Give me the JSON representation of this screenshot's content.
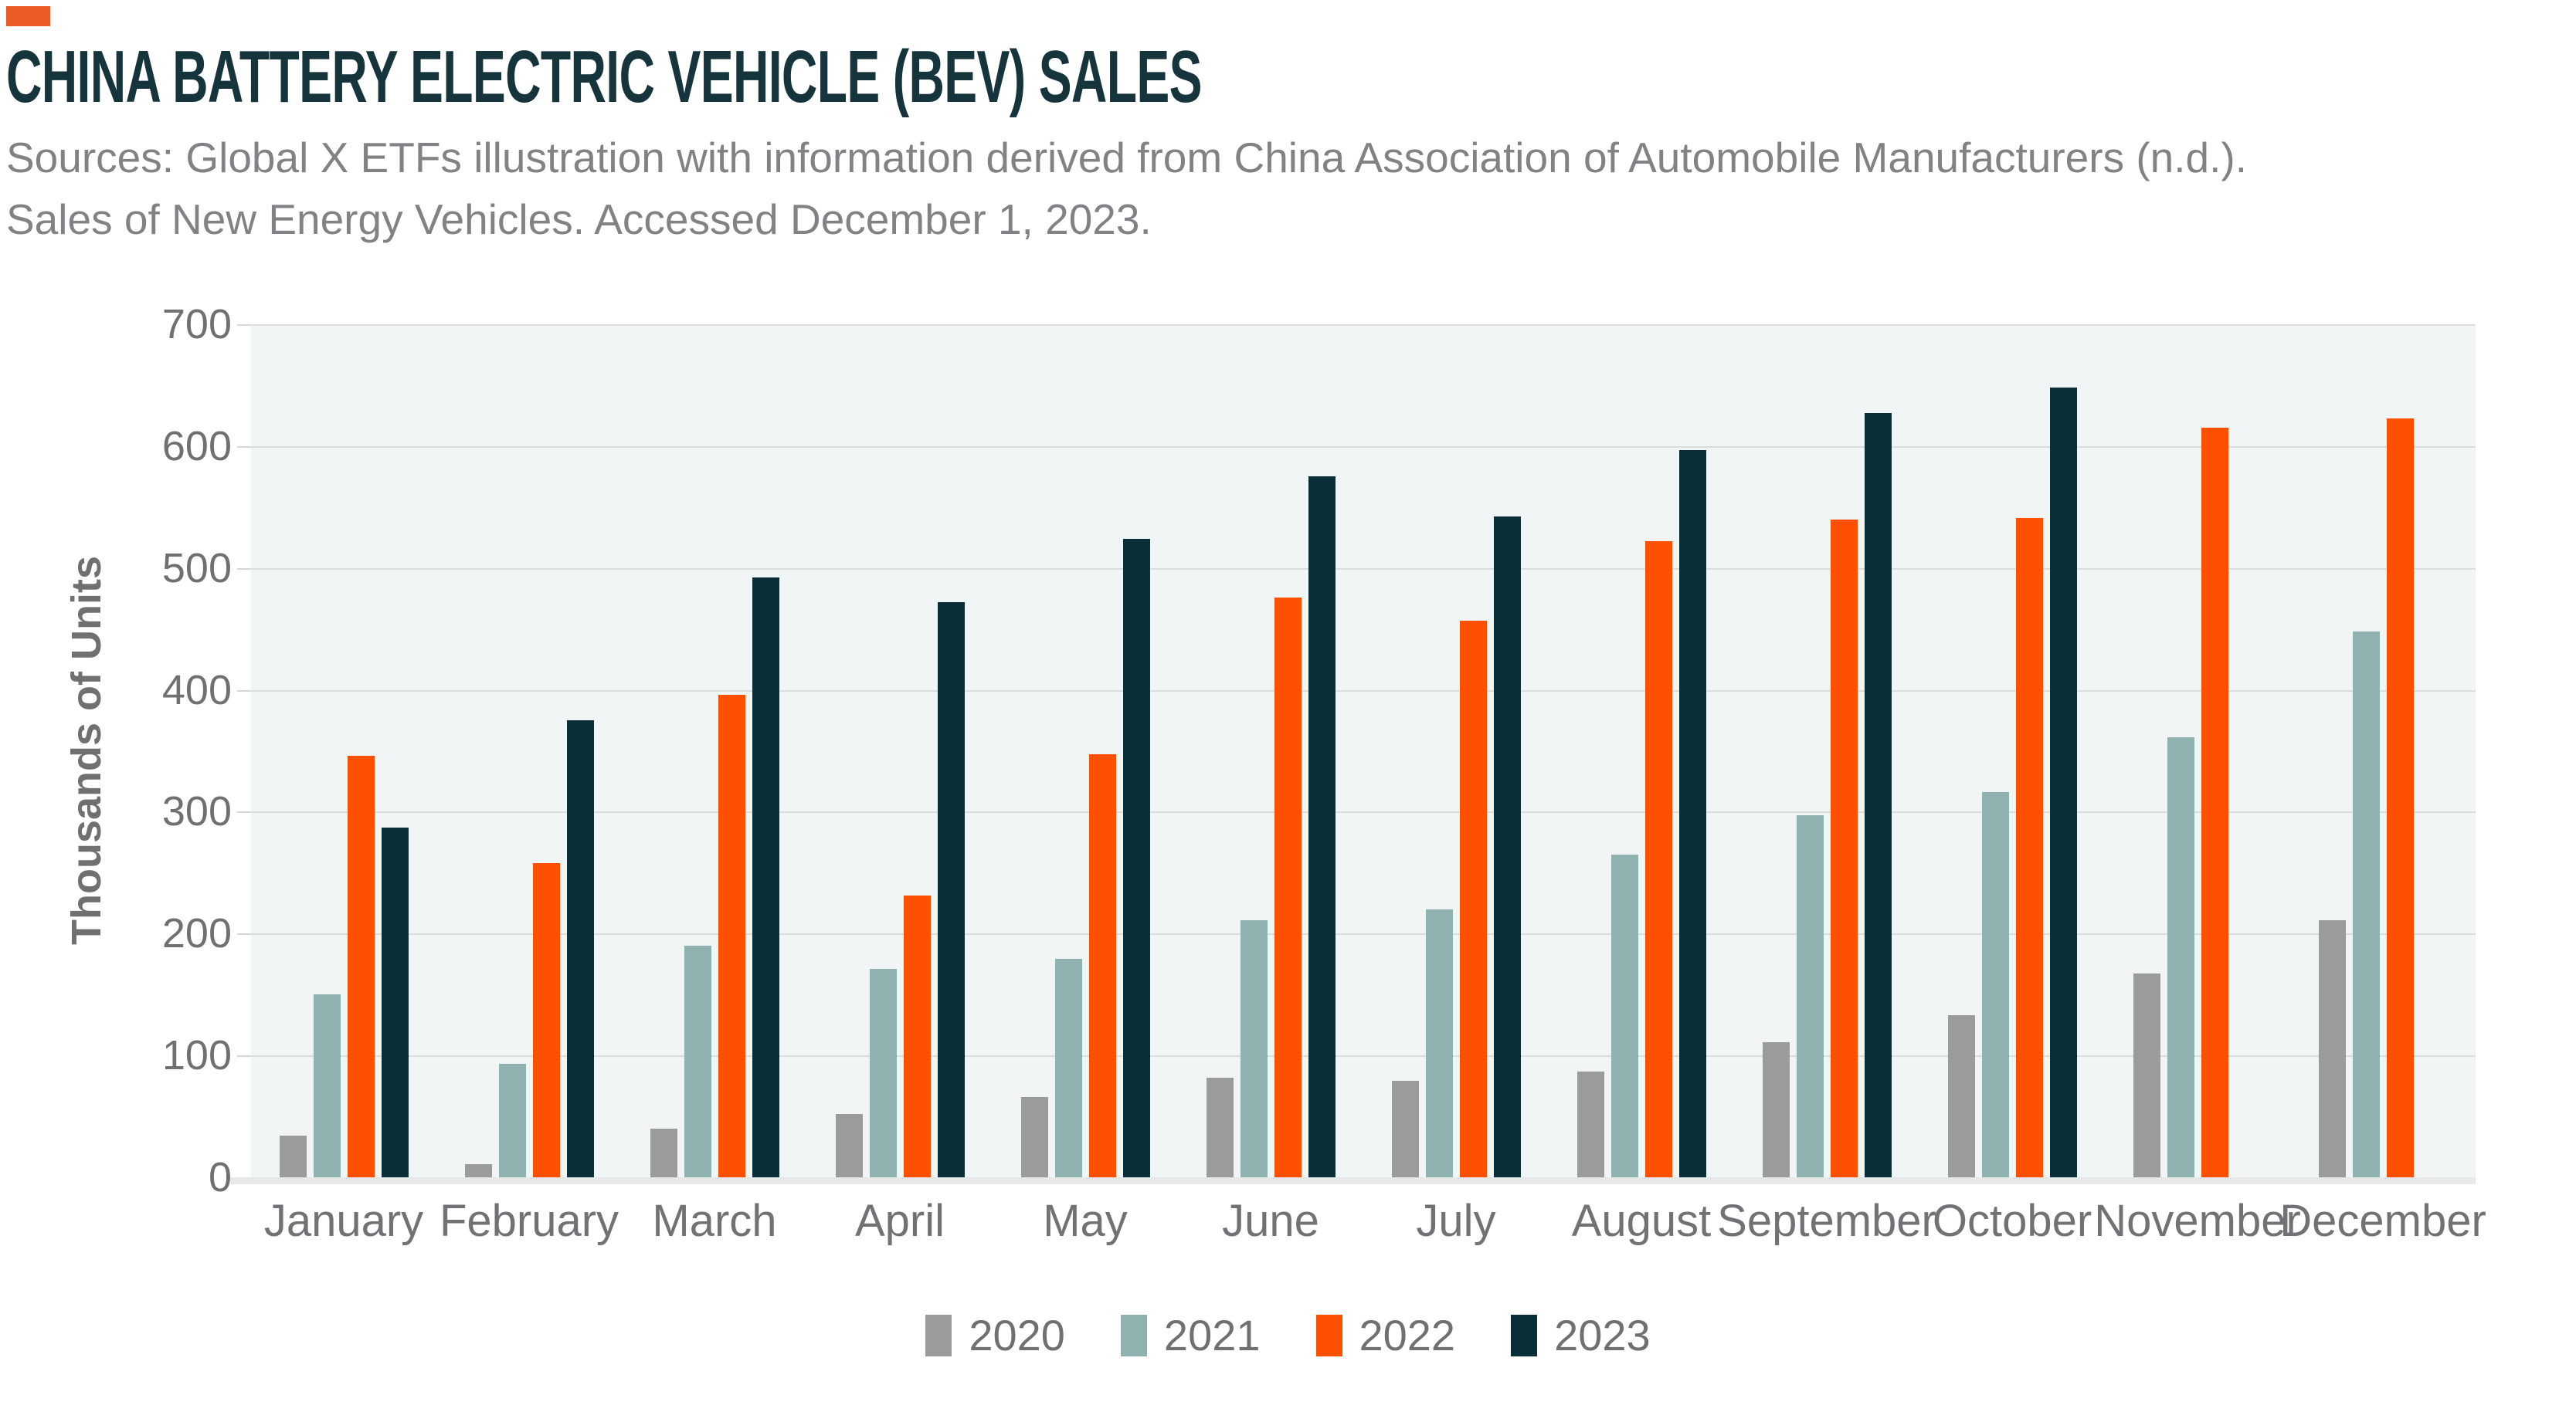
{
  "colors": {
    "accent": "#ea5b25",
    "title": "#16343c",
    "sources_text": "#808285",
    "axis_text": "#6f7072",
    "plot_background": "#f1f5f6",
    "gridline": "#d9dddc"
  },
  "header": {
    "title": "CHINA BATTERY ELECTRIC VEHICLE (BEV) SALES",
    "sources_line1": "Sources: Global X ETFs illustration with information derived from China Association of Automobile Manufacturers (n.d.).",
    "sources_line2": "Sales of New Energy Vehicles. Accessed December 1, 2023."
  },
  "chart_data": {
    "type": "bar",
    "title": "CHINA BATTERY ELECTRIC VEHICLE (BEV) SALES",
    "xlabel": "",
    "ylabel": "Thousands of Units",
    "ylim": [
      0,
      700
    ],
    "ytick_step": 100,
    "grid": true,
    "legend_position": "bottom",
    "categories": [
      "January",
      "February",
      "March",
      "April",
      "May",
      "June",
      "July",
      "August",
      "September",
      "October",
      "November",
      "December"
    ],
    "series": [
      {
        "name": "2020",
        "color": "#9b9b99",
        "values": [
          34,
          11,
          40,
          52,
          66,
          82,
          79,
          87,
          111,
          133,
          167,
          211
        ]
      },
      {
        "name": "2021",
        "color": "#8fb2b0",
        "values": [
          150,
          93,
          190,
          171,
          179,
          211,
          220,
          265,
          297,
          316,
          361,
          448
        ]
      },
      {
        "name": "2022",
        "color": "#fc4f00",
        "values": [
          346,
          258,
          396,
          231,
          347,
          476,
          457,
          522,
          540,
          541,
          615,
          623
        ]
      },
      {
        "name": "2023",
        "color": "#0a2e38",
        "values": [
          287,
          375,
          492,
          472,
          524,
          575,
          542,
          597,
          627,
          648,
          null,
          null
        ]
      }
    ]
  }
}
